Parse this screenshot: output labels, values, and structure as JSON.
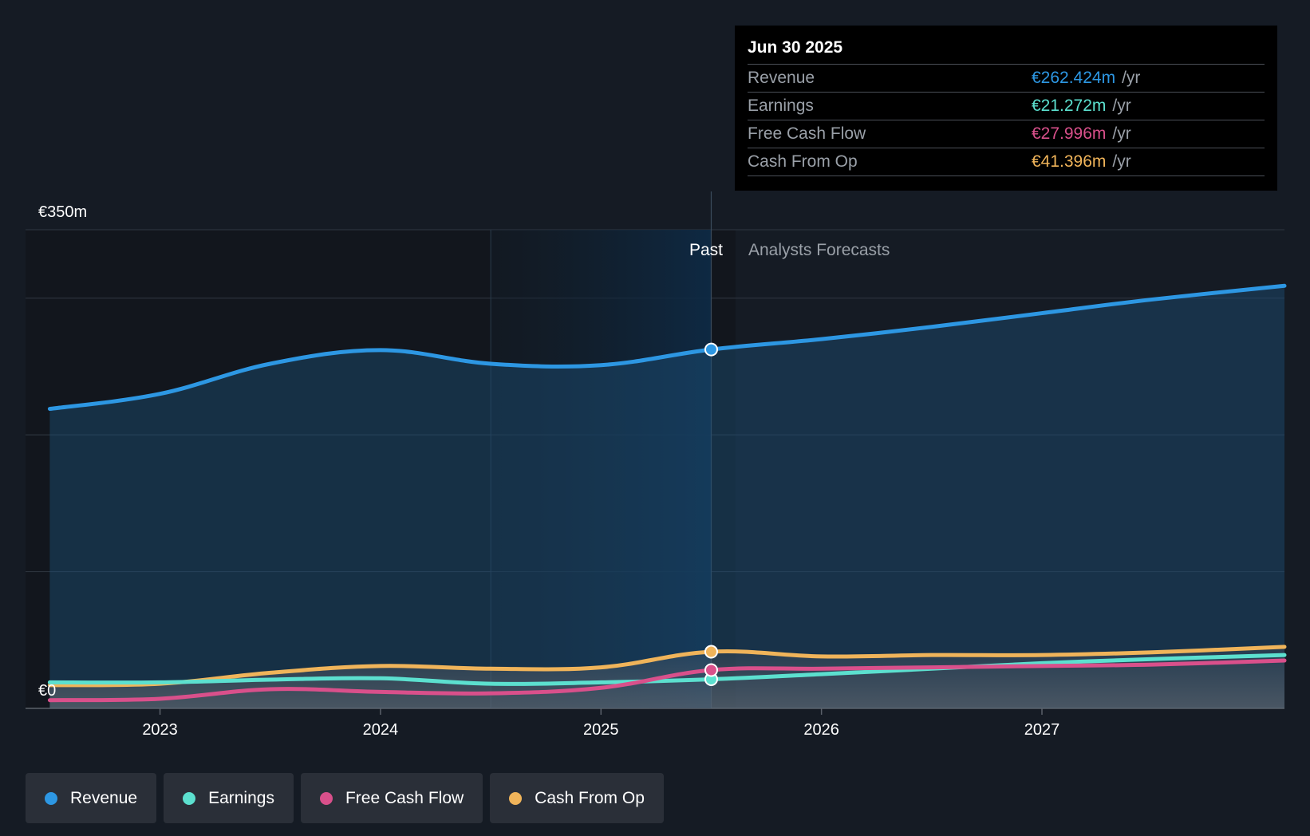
{
  "chart_data": {
    "type": "area",
    "y_axis": {
      "top_label": "€350m",
      "bottom_label": "€0",
      "ylim": [
        0,
        350
      ],
      "gridlines": [
        0,
        100,
        200,
        300,
        350
      ]
    },
    "x_axis": {
      "tick_labels": [
        "2023",
        "2024",
        "2025",
        "2026",
        "2027"
      ],
      "tick_values": [
        2023.0,
        2024.0,
        2025.0,
        2026.0,
        2027.0
      ],
      "xlim": [
        2022.39,
        2028.1
      ]
    },
    "past_label": "Past",
    "forecast_label": "Analysts Forecasts",
    "divider_x": 2025.5,
    "shade_start_x": 2024.5,
    "series": [
      {
        "name": "Revenue",
        "color": "#2d97e3",
        "points": [
          [
            2022.5,
            219
          ],
          [
            2023.0,
            230
          ],
          [
            2023.5,
            252
          ],
          [
            2024.0,
            262
          ],
          [
            2024.5,
            252
          ],
          [
            2025.0,
            251
          ],
          [
            2025.5,
            262.424
          ],
          [
            2026.0,
            270
          ],
          [
            2026.5,
            279
          ],
          [
            2027.0,
            289
          ],
          [
            2027.5,
            299
          ],
          [
            2028.1,
            309
          ]
        ]
      },
      {
        "name": "Earnings",
        "color": "#5ce0cf",
        "points": [
          [
            2022.5,
            19
          ],
          [
            2023.0,
            19
          ],
          [
            2023.5,
            21
          ],
          [
            2024.0,
            22
          ],
          [
            2024.5,
            18
          ],
          [
            2025.0,
            19
          ],
          [
            2025.5,
            21.272
          ],
          [
            2026.0,
            25
          ],
          [
            2026.5,
            29
          ],
          [
            2027.0,
            33
          ],
          [
            2027.5,
            36
          ],
          [
            2028.1,
            39
          ]
        ]
      },
      {
        "name": "Free Cash Flow",
        "color": "#d9508b",
        "points": [
          [
            2022.5,
            6
          ],
          [
            2023.0,
            7
          ],
          [
            2023.5,
            14
          ],
          [
            2024.0,
            12
          ],
          [
            2024.5,
            11
          ],
          [
            2025.0,
            15
          ],
          [
            2025.5,
            27.996
          ],
          [
            2026.0,
            29
          ],
          [
            2026.5,
            30
          ],
          [
            2027.0,
            31
          ],
          [
            2027.5,
            32
          ],
          [
            2028.1,
            35
          ]
        ]
      },
      {
        "name": "Cash From Op",
        "color": "#f0b45a",
        "points": [
          [
            2022.5,
            17
          ],
          [
            2023.0,
            18
          ],
          [
            2023.5,
            26
          ],
          [
            2024.0,
            31
          ],
          [
            2024.5,
            29
          ],
          [
            2025.0,
            30
          ],
          [
            2025.5,
            41.396
          ],
          [
            2026.0,
            38
          ],
          [
            2026.5,
            39
          ],
          [
            2027.0,
            39
          ],
          [
            2027.5,
            41
          ],
          [
            2028.1,
            45
          ]
        ]
      }
    ]
  },
  "tooltip": {
    "date": "Jun 30 2025",
    "rows": [
      {
        "name": "Revenue",
        "value": "€262.424m",
        "unit": "/yr",
        "color": "#2d97e3"
      },
      {
        "name": "Earnings",
        "value": "€21.272m",
        "unit": "/yr",
        "color": "#5ce0cf"
      },
      {
        "name": "Free Cash Flow",
        "value": "€27.996m",
        "unit": "/yr",
        "color": "#d9508b"
      },
      {
        "name": "Cash From Op",
        "value": "€41.396m",
        "unit": "/yr",
        "color": "#f0b45a"
      }
    ]
  },
  "legend": [
    {
      "label": "Revenue",
      "color": "#2d97e3"
    },
    {
      "label": "Earnings",
      "color": "#5ce0cf"
    },
    {
      "label": "Free Cash Flow",
      "color": "#d9508b"
    },
    {
      "label": "Cash From Op",
      "color": "#f0b45a"
    }
  ]
}
